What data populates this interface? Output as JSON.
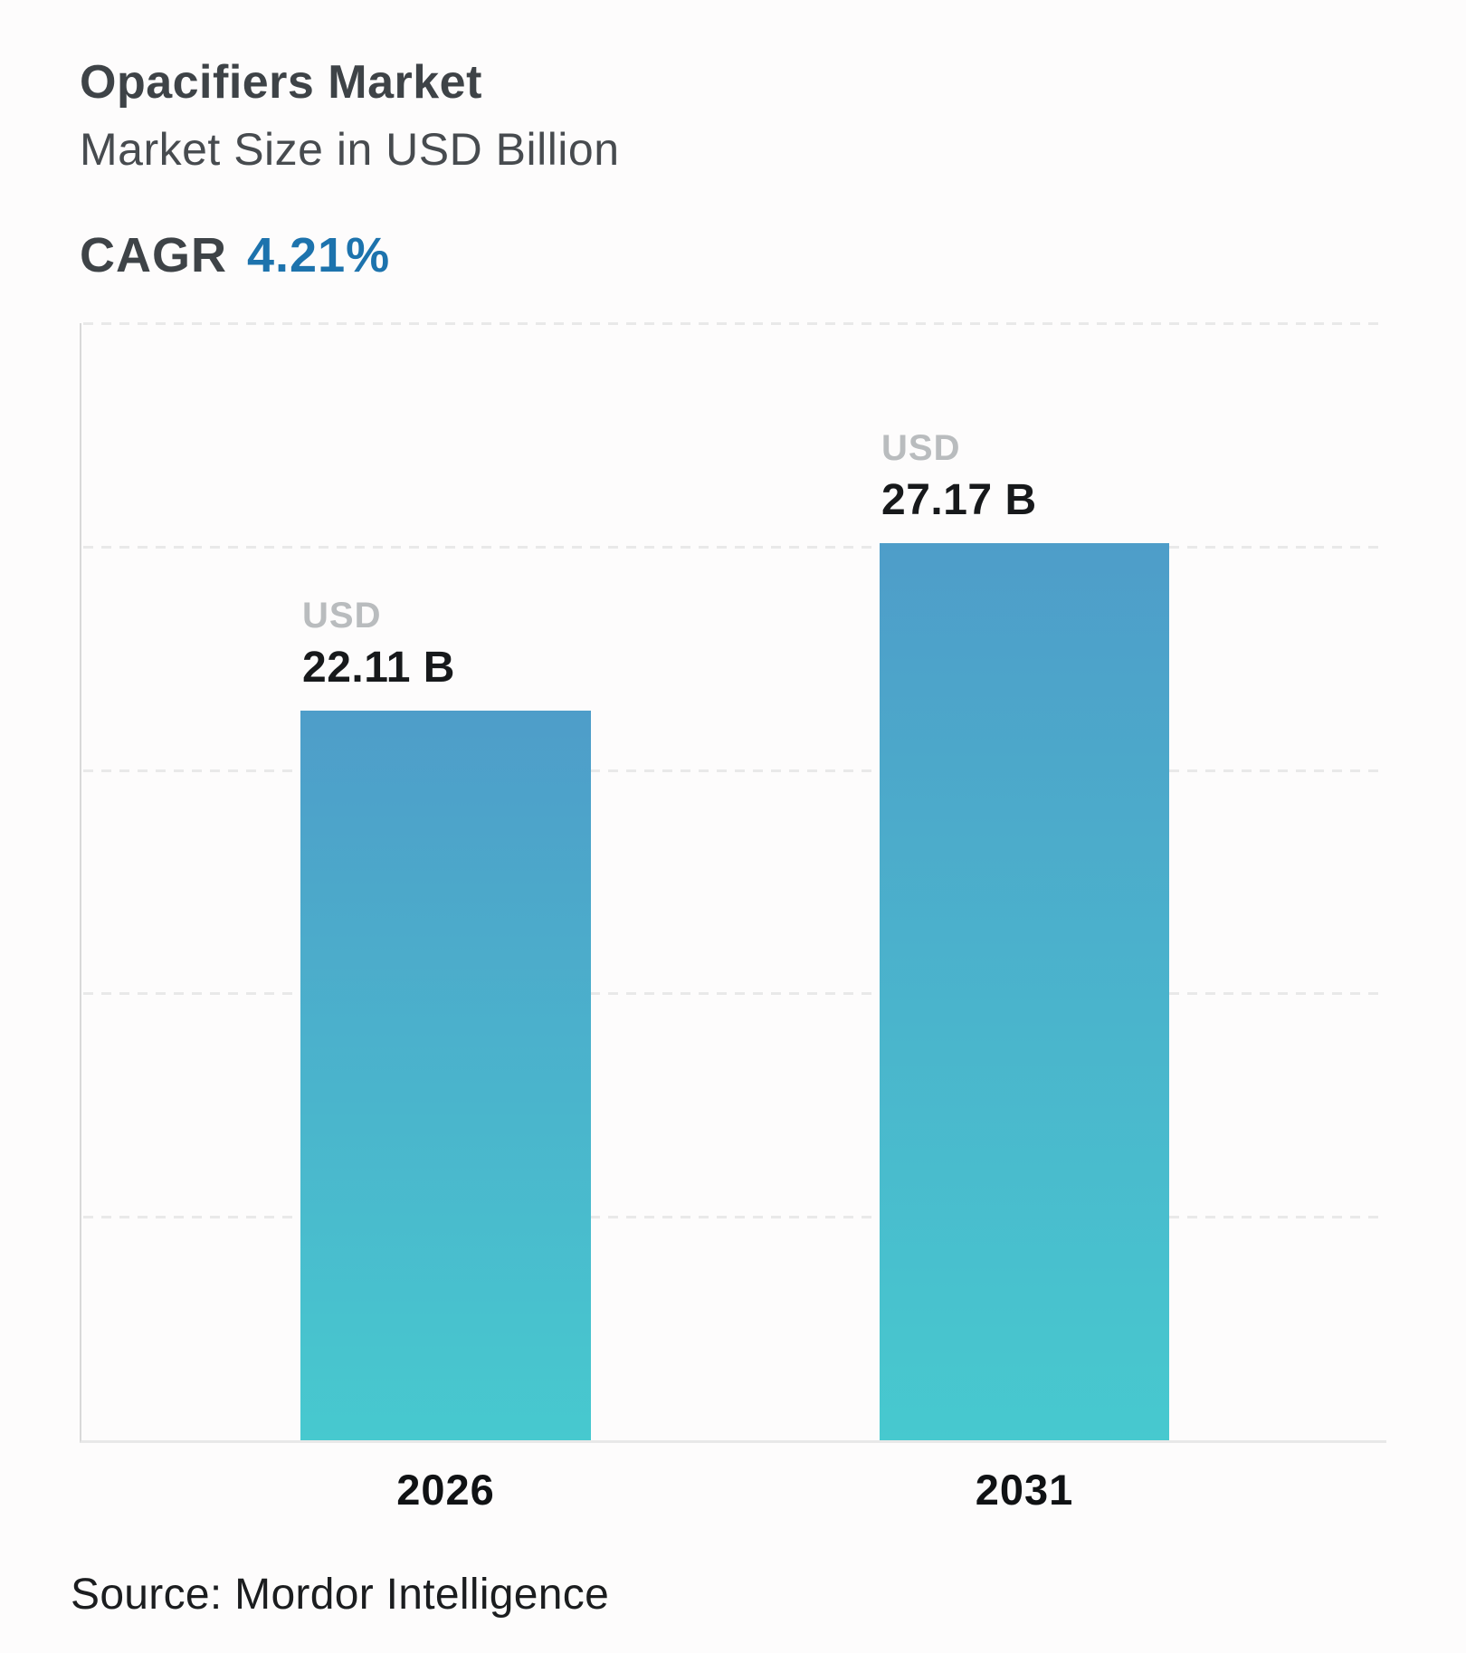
{
  "header": {
    "title": "Opacifiers Market",
    "subtitle": "Market Size in USD Billion",
    "cagr_label": "CAGR",
    "cagr_value": "4.21%"
  },
  "chart_data": {
    "type": "bar",
    "title": "Opacifiers Market",
    "subtitle": "Market Size in USD Billion",
    "cagr": "4.21%",
    "categories": [
      "2026",
      "2031"
    ],
    "values": [
      22.11,
      27.17
    ],
    "bar_labels": [
      {
        "currency": "USD",
        "value_text": "22.11 B"
      },
      {
        "currency": "USD",
        "value_text": "27.17 B"
      }
    ],
    "unit": "USD Billion",
    "xlabel": "",
    "ylabel": "",
    "ylim": [
      0,
      33.83
    ],
    "grid": "horizontal-dashed",
    "legend": "none",
    "colors": {
      "bar_gradient_top": "#4e9dc9",
      "bar_gradient_bottom": "#47c9cf",
      "cagr_value": "#1d73ad",
      "currency_label": "#b9bcbe",
      "value_label": "#17191b",
      "year_label": "#101214",
      "gridline": "#e9e9e9"
    }
  },
  "footer": {
    "source": "Source: Mordor Intelligence"
  }
}
